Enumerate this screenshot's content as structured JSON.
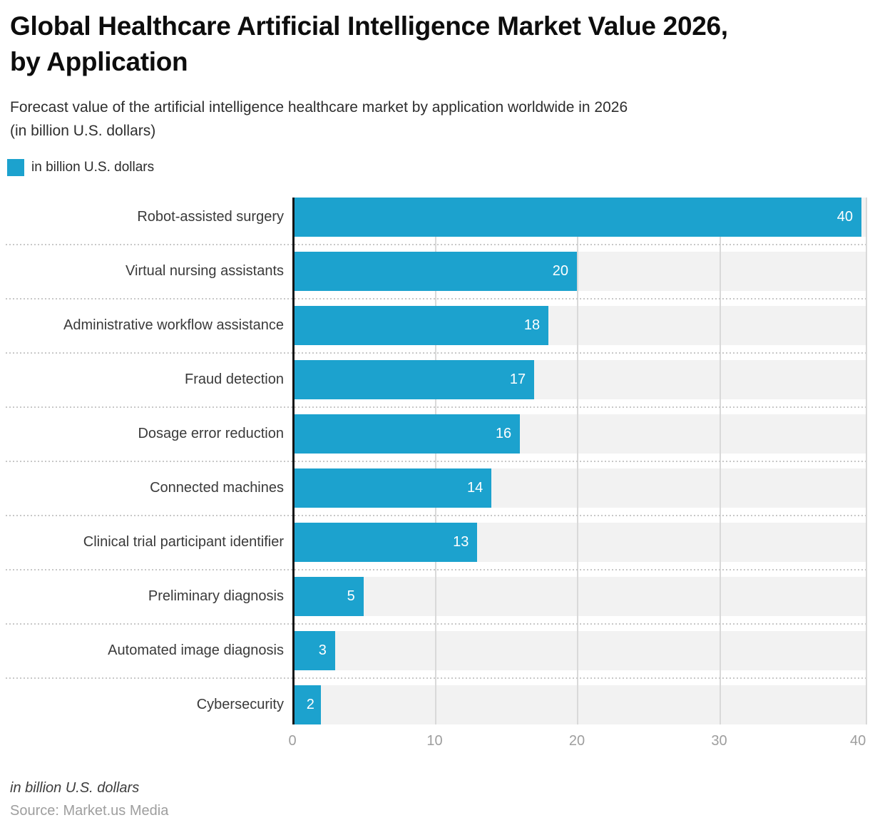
{
  "page": {
    "title": "Global Healthcare Artificial Intelligence Market Value 2026,\nby Application",
    "subtitle": "Forecast value of the artificial intelligence healthcare market by application worldwide in 2026\n(in billion U.S. dollars)",
    "legend_label": "in billion U.S. dollars",
    "footer_note": "in billion U.S. dollars",
    "source": "Source: Market.us Media"
  },
  "colors": {
    "bar": "#1ca2ce",
    "track": "#f2f2f2",
    "gridline": "#d9d9d9",
    "dot": "#c8c8c8",
    "axis_line": "#141414",
    "tick_label": "#9e9e9e"
  },
  "chart_data": {
    "type": "bar",
    "orientation": "horizontal",
    "title": "Global Healthcare Artificial Intelligence Market Value 2026, by Application",
    "subtitle": "Forecast value of the artificial intelligence healthcare market by application worldwide in 2026 (in billion U.S. dollars)",
    "categories": [
      "Robot-assisted surgery",
      "Virtual nursing assistants",
      "Administrative workflow assistance",
      "Fraud detection",
      "Dosage error reduction",
      "Connected machines",
      "Clinical trial participant identifier",
      "Preliminary diagnosis",
      "Automated image diagnosis",
      "Cybersecurity"
    ],
    "values": [
      40,
      20,
      18,
      17,
      16,
      14,
      13,
      5,
      3,
      2
    ],
    "xlabel": "in billion U.S. dollars",
    "ylabel": "",
    "xlim": [
      0,
      40
    ],
    "x_ticks": [
      0,
      10,
      20,
      30,
      40
    ],
    "legend": [
      "in billion U.S. dollars"
    ],
    "legend_position": "top-left",
    "grid": "vertical",
    "bar_value_labels": "inside-end, white",
    "source": "Source: Market.us Media"
  }
}
